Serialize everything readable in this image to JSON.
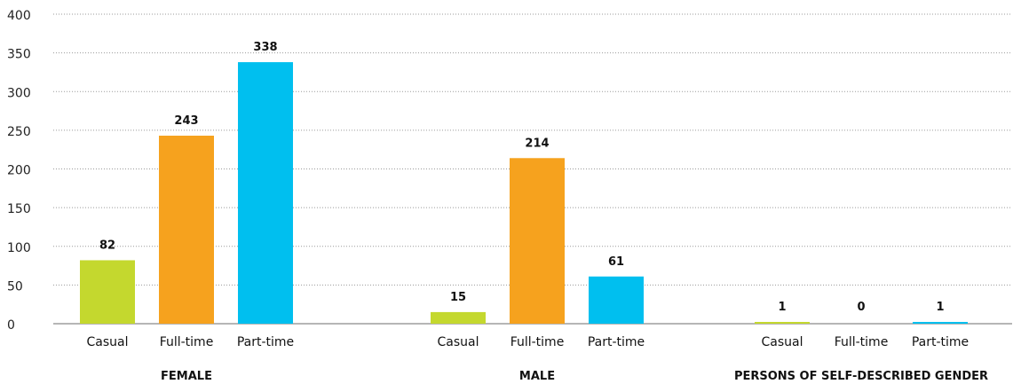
{
  "chart_data": {
    "type": "bar",
    "title": "",
    "xlabel": "",
    "ylabel": "",
    "ylim": [
      0,
      400
    ],
    "yticks": [
      0,
      50,
      100,
      150,
      200,
      250,
      300,
      350,
      400
    ],
    "grid": true,
    "legend": "none",
    "groups": [
      {
        "name": "FEMALE",
        "bars": [
          {
            "label": "Casual",
            "value": 82,
            "color": "#c4d82e"
          },
          {
            "label": "Full-time",
            "value": 243,
            "color": "#f6a21e"
          },
          {
            "label": "Part-time",
            "value": 338,
            "color": "#00bfef"
          }
        ]
      },
      {
        "name": "MALE",
        "bars": [
          {
            "label": "Casual",
            "value": 15,
            "color": "#c4d82e"
          },
          {
            "label": "Full-time",
            "value": 214,
            "color": "#f6a21e"
          },
          {
            "label": "Part-time",
            "value": 61,
            "color": "#00bfef"
          }
        ]
      },
      {
        "name": "PERSONS OF SELF-DESCRIBED GENDER",
        "bars": [
          {
            "label": "Casual",
            "value": 1,
            "color": "#c4d82e"
          },
          {
            "label": "Full-time",
            "value": 0,
            "color": "#f6a21e"
          },
          {
            "label": "Part-time",
            "value": 1,
            "color": "#00bfef"
          }
        ]
      }
    ]
  }
}
